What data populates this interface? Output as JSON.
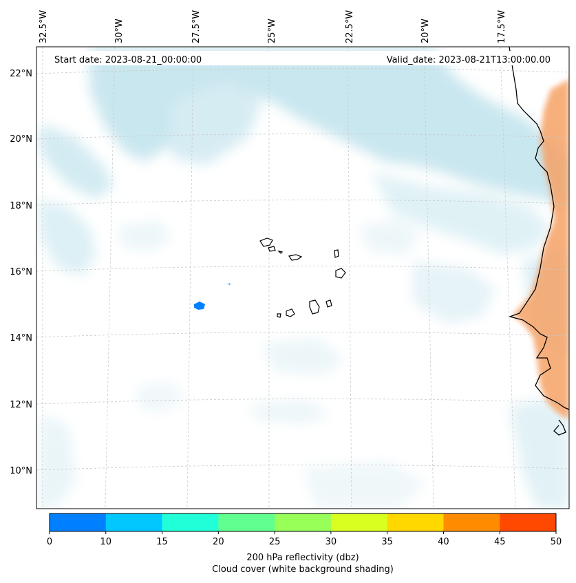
{
  "header": {
    "start_date": "Start date: 2023-08-21_00:00:00",
    "valid_date": "Valid_date: 2023-08-21T13:00:00.00"
  },
  "axes": {
    "longitude_labels": [
      "32.5°W",
      "30°W",
      "27.5°W",
      "25°W",
      "22.5°W",
      "20°W",
      "17.5°W"
    ],
    "latitude_labels": [
      "22°N",
      "20°N",
      "18°N",
      "16°N",
      "14°N",
      "12°N",
      "10°N"
    ]
  },
  "colorbar": {
    "ticks": [
      "0",
      "10",
      "15",
      "20",
      "25",
      "30",
      "35",
      "40",
      "45",
      "50"
    ],
    "colors": [
      "#0080ff",
      "#00c8ff",
      "#20ffd8",
      "#60ff90",
      "#98ff58",
      "#d8ff20",
      "#ffd800",
      "#ff8c00",
      "#ff4800"
    ],
    "label_line1": "200 hPa reflectivity (dbz)",
    "label_line2": "Cloud cover (white background shading)"
  },
  "map_layers": {
    "cloud_color": "#b8dfea",
    "land_shading_color": "#f6a266",
    "reflectivity_echo_color": "#0080ff"
  }
}
